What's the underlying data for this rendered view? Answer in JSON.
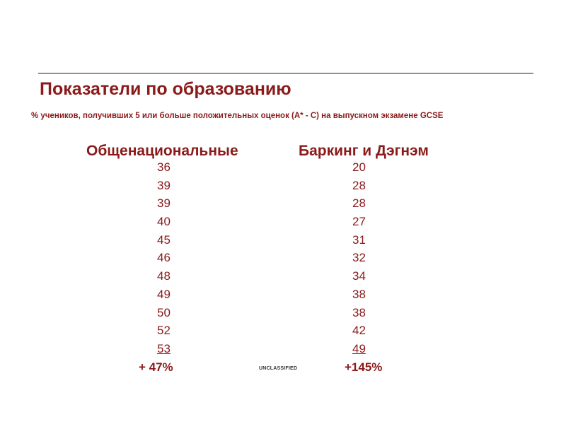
{
  "title": "Показатели по образованию",
  "subtitle": "% учеников, получивших 5 или больше положительных оценок (A* - C) на выпускном экзамене GCSE",
  "columns": [
    {
      "header": "Общенациональные",
      "values": [
        "36",
        "39",
        "39",
        "40",
        "45",
        "46",
        "48",
        "49",
        "50",
        "52",
        "53"
      ],
      "total": "+ 47%"
    },
    {
      "header": "Баркинг и Дэгнэм",
      "values": [
        "20",
        "28",
        "28",
        "27",
        "31",
        "32",
        "34",
        "38",
        "38",
        "42",
        "49"
      ],
      "total": "+145%"
    }
  ],
  "classification": "UNCLASSIFIED",
  "colors": {
    "accent": "#8b1a1a",
    "rule": "#1a1a1a"
  }
}
